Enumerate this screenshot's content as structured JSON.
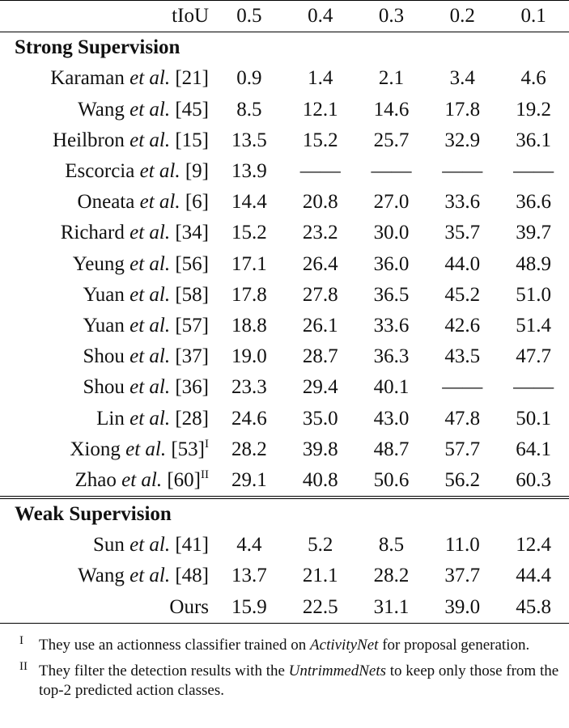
{
  "header": {
    "label": "tIoU",
    "thresholds": [
      "0.5",
      "0.4",
      "0.3",
      "0.2",
      "0.1"
    ]
  },
  "sections": [
    {
      "title": "Strong Supervision",
      "rows": [
        {
          "author": "Karaman",
          "etal": "et al.",
          "ref": "[21]",
          "note": "",
          "values": [
            "0.9",
            "1.4",
            "2.1",
            "3.4",
            "4.6"
          ]
        },
        {
          "author": "Wang",
          "etal": "et al.",
          "ref": "[45]",
          "note": "",
          "values": [
            "8.5",
            "12.1",
            "14.6",
            "17.8",
            "19.2"
          ]
        },
        {
          "author": "Heilbron",
          "etal": "et al.",
          "ref": "[15]",
          "note": "",
          "values": [
            "13.5",
            "15.2",
            "25.7",
            "32.9",
            "36.1"
          ]
        },
        {
          "author": "Escorcia",
          "etal": "et al.",
          "ref": "[9]",
          "note": "",
          "values": [
            "13.9",
            "——",
            "——",
            "——",
            "——"
          ]
        },
        {
          "author": "Oneata",
          "etal": "et al.",
          "ref": "[6]",
          "note": "",
          "values": [
            "14.4",
            "20.8",
            "27.0",
            "33.6",
            "36.6"
          ]
        },
        {
          "author": "Richard",
          "etal": "et al.",
          "ref": "[34]",
          "note": "",
          "values": [
            "15.2",
            "23.2",
            "30.0",
            "35.7",
            "39.7"
          ]
        },
        {
          "author": "Yeung",
          "etal": "et al.",
          "ref": "[56]",
          "note": "",
          "values": [
            "17.1",
            "26.4",
            "36.0",
            "44.0",
            "48.9"
          ]
        },
        {
          "author": "Yuan",
          "etal": "et al.",
          "ref": "[58]",
          "note": "",
          "values": [
            "17.8",
            "27.8",
            "36.5",
            "45.2",
            "51.0"
          ]
        },
        {
          "author": "Yuan",
          "etal": "et al.",
          "ref": "[57]",
          "note": "",
          "values": [
            "18.8",
            "26.1",
            "33.6",
            "42.6",
            "51.4"
          ]
        },
        {
          "author": "Shou",
          "etal": "et al.",
          "ref": "[37]",
          "note": "",
          "values": [
            "19.0",
            "28.7",
            "36.3",
            "43.5",
            "47.7"
          ]
        },
        {
          "author": "Shou",
          "etal": "et al.",
          "ref": "[36]",
          "note": "",
          "values": [
            "23.3",
            "29.4",
            "40.1",
            "——",
            "——"
          ]
        },
        {
          "author": "Lin",
          "etal": "et al.",
          "ref": "[28]",
          "note": "",
          "values": [
            "24.6",
            "35.0",
            "43.0",
            "47.8",
            "50.1"
          ]
        },
        {
          "author": "Xiong",
          "etal": "et al.",
          "ref": "[53]",
          "note": "I",
          "values": [
            "28.2",
            "39.8",
            "48.7",
            "57.7",
            "64.1"
          ]
        },
        {
          "author": "Zhao",
          "etal": "et al.",
          "ref": "[60]",
          "note": "II",
          "values": [
            "29.1",
            "40.8",
            "50.6",
            "56.2",
            "60.3"
          ]
        }
      ]
    },
    {
      "title": "Weak Supervision",
      "rows": [
        {
          "author": "Sun",
          "etal": "et al.",
          "ref": "[41]",
          "note": "",
          "values": [
            "4.4",
            "5.2",
            "8.5",
            "11.0",
            "12.4"
          ]
        },
        {
          "author": "Wang",
          "etal": "et al.",
          "ref": "[48]",
          "note": "",
          "values": [
            "13.7",
            "21.1",
            "28.2",
            "37.7",
            "44.4"
          ]
        },
        {
          "author": "Ours",
          "etal": "",
          "ref": "",
          "note": "",
          "values": [
            "15.9",
            "22.5",
            "31.1",
            "39.0",
            "45.8"
          ]
        }
      ]
    }
  ],
  "footnotes": [
    {
      "mark": "I",
      "before": "They use an actionness classifier trained on ",
      "emph": "ActivityNet",
      "after": " for proposal generation."
    },
    {
      "mark": "II",
      "before": "They filter the detection results with the ",
      "emph": "UntrimmedNets",
      "after": " to keep only those from the top-2 predicted action classes."
    }
  ]
}
